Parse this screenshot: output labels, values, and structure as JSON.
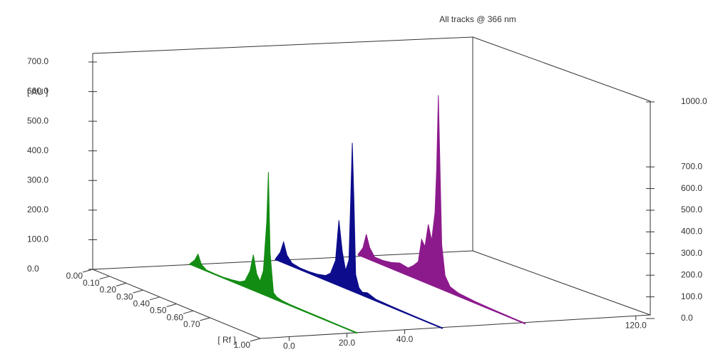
{
  "chart_data": {
    "type": "densitogram",
    "title": "All tracks @ 366 nm",
    "y_label": "[ AU ]",
    "rf_label": "[ Rf ]",
    "rf": [
      0,
      0.03,
      0.05,
      0.07,
      0.1,
      0.15,
      0.2,
      0.25,
      0.3,
      0.33,
      0.36,
      0.38,
      0.4,
      0.42,
      0.44,
      0.46,
      0.47,
      0.48,
      0.5,
      0.52,
      0.55,
      0.6,
      0.7,
      0.8,
      0.9,
      1.0
    ],
    "rflim": [
      0,
      1
    ],
    "rfticks": [
      {
        "value": 0,
        "label": "0.00"
      },
      {
        "value": 0.1,
        "label": "0.10"
      },
      {
        "value": 0.2,
        "label": "0.20"
      },
      {
        "value": 0.3,
        "label": "0.30"
      },
      {
        "value": 0.4,
        "label": "0.40"
      },
      {
        "value": 0.5,
        "label": "0.50"
      },
      {
        "value": 0.6,
        "label": "0.60"
      },
      {
        "value": 0.7,
        "label": "0.70"
      },
      {
        "value": 1.0,
        "label": "1.00"
      }
    ],
    "xlim": [
      -10,
      125
    ],
    "xticks": [
      {
        "value": 0,
        "label": "0.0"
      },
      {
        "value": 20,
        "label": "20.0"
      },
      {
        "value": 40,
        "label": "40.0"
      },
      {
        "value": 120,
        "label": "120.0"
      }
    ],
    "ylim": [
      0,
      700
    ],
    "yticks": [
      {
        "value": 0,
        "label": "0.0"
      },
      {
        "value": 100,
        "label": "100.0"
      },
      {
        "value": 200,
        "label": "200.0"
      },
      {
        "value": 300,
        "label": "300.0"
      },
      {
        "value": 400,
        "label": "400.0"
      },
      {
        "value": 500,
        "label": "500.0"
      },
      {
        "value": 600,
        "label": "600.0"
      },
      {
        "value": 700,
        "label": "700.0"
      }
    ],
    "y2lim": [
      0,
      1000
    ],
    "y2ticks": [
      {
        "value": 0,
        "label": "0.0"
      },
      {
        "value": 100,
        "label": "100.0"
      },
      {
        "value": 200,
        "label": "200.0"
      },
      {
        "value": 300,
        "label": "300.0"
      },
      {
        "value": 400,
        "label": "400.0"
      },
      {
        "value": 500,
        "label": "500.0"
      },
      {
        "value": 600,
        "label": "600.0"
      },
      {
        "value": 700,
        "label": "700.0"
      },
      {
        "value": 1000,
        "label": "1000.0"
      }
    ],
    "series": [
      {
        "color": "#138c13",
        "track": 24,
        "values": [
          0,
          20,
          45,
          15,
          3,
          2,
          2,
          5,
          10,
          20,
          60,
          120,
          60,
          40,
          80,
          250,
          420,
          150,
          20,
          10,
          5,
          3,
          2,
          2,
          1,
          0
        ]
      },
      {
        "color": "#0c0c8c",
        "track": 54,
        "values": [
          0,
          30,
          70,
          30,
          10,
          5,
          5,
          8,
          15,
          30,
          80,
          220,
          120,
          60,
          100,
          500,
          300,
          60,
          20,
          10,
          15,
          5,
          3,
          2,
          1,
          0
        ]
      },
      {
        "color": "#8c1a8c",
        "track": 83,
        "values": [
          0,
          30,
          80,
          40,
          15,
          15,
          20,
          30,
          25,
          40,
          60,
          140,
          120,
          200,
          150,
          250,
          400,
          650,
          150,
          50,
          20,
          10,
          5,
          3,
          2,
          0
        ]
      }
    ]
  }
}
